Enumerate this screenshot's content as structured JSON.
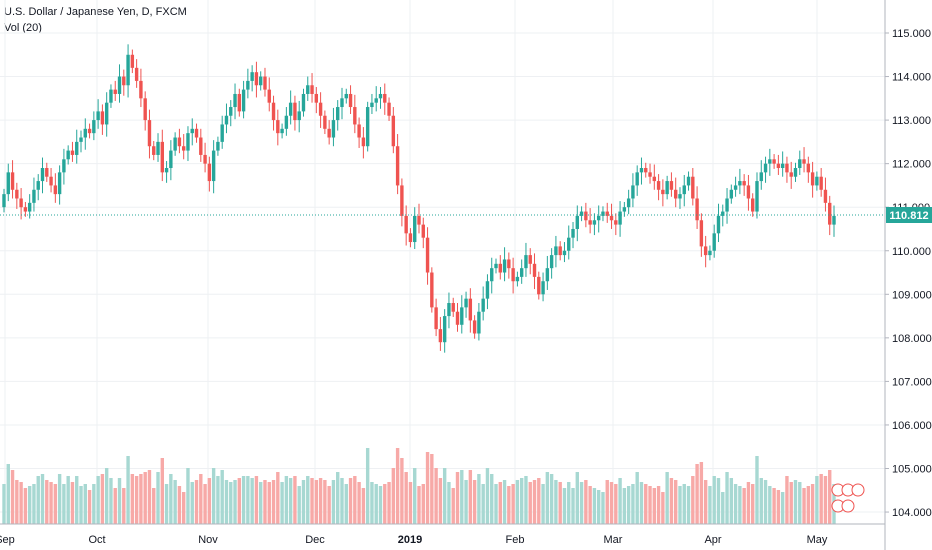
{
  "legend": {
    "title": "U.S. Dollar / Japanese Yen, D, FXCM",
    "volume": "Vol (20)"
  },
  "colors": {
    "up": "#26a69a",
    "down": "#ef5350",
    "up_volume": "#a7d8d2",
    "down_volume": "#f7a9a7",
    "grid": "#eef0f3",
    "axis_line": "#b2b5be",
    "price_tag": "#26a69a"
  },
  "last_price_label": "110.812",
  "chart_data": {
    "type": "candlestick",
    "title": "U.S. Dollar / Japanese Yen, D, FXCM",
    "y_axis": {
      "range": [
        103.6,
        115.7
      ],
      "ticks": [
        "115.000",
        "114.000",
        "113.000",
        "112.000",
        "111.000",
        "110.000",
        "109.000",
        "108.000",
        "107.000",
        "106.000",
        "105.000",
        "104.000"
      ]
    },
    "x_axis": {
      "ticks": [
        "Sep",
        "Oct",
        "Nov",
        "Dec",
        "2019",
        "Feb",
        "Mar",
        "Apr",
        "May"
      ],
      "bold_ticks": [
        "2019"
      ]
    },
    "last_price": 110.812,
    "grid": true,
    "candles_close": [
      111.3,
      111.8,
      111.4,
      111.2,
      111.0,
      110.9,
      111.1,
      111.4,
      111.6,
      111.9,
      111.7,
      111.5,
      111.3,
      111.8,
      112.1,
      112.3,
      112.2,
      112.5,
      112.6,
      112.8,
      112.7,
      113.0,
      113.2,
      112.9,
      113.4,
      113.7,
      113.6,
      114.0,
      113.8,
      114.5,
      114.2,
      113.9,
      113.5,
      113.0,
      112.4,
      112.2,
      112.5,
      111.8,
      111.9,
      112.3,
      112.6,
      112.4,
      112.3,
      112.7,
      112.8,
      112.6,
      112.2,
      112.0,
      111.6,
      112.3,
      112.5,
      112.9,
      113.1,
      113.3,
      113.6,
      113.2,
      113.7,
      113.9,
      114.1,
      113.8,
      114.0,
      113.7,
      113.4,
      113.0,
      112.7,
      112.8,
      113.1,
      113.4,
      113.0,
      113.2,
      113.6,
      113.8,
      113.6,
      113.4,
      113.1,
      112.8,
      112.6,
      113.0,
      113.3,
      113.5,
      113.6,
      113.3,
      112.9,
      112.6,
      112.4,
      113.3,
      113.4,
      113.5,
      113.6,
      113.4,
      113.1,
      112.4,
      111.5,
      110.8,
      110.4,
      110.2,
      110.8,
      110.6,
      110.3,
      109.5,
      108.7,
      108.2,
      107.9,
      108.5,
      108.8,
      108.6,
      108.3,
      108.7,
      108.9,
      108.4,
      108.1,
      108.6,
      108.9,
      109.3,
      109.6,
      109.7,
      109.5,
      109.8,
      109.6,
      109.3,
      109.4,
      109.6,
      109.9,
      109.7,
      109.4,
      109.0,
      109.3,
      109.6,
      109.9,
      110.1,
      109.9,
      110.0,
      110.3,
      110.5,
      110.8,
      110.9,
      110.7,
      110.6,
      110.7,
      110.8,
      110.9,
      110.8,
      110.7,
      110.6,
      110.9,
      111.0,
      111.2,
      111.5,
      111.8,
      111.9,
      111.8,
      111.7,
      111.6,
      111.4,
      111.3,
      111.6,
      111.4,
      111.2,
      111.3,
      111.5,
      111.7,
      111.2,
      110.7,
      110.1,
      109.9,
      110.0,
      110.4,
      110.8,
      110.9,
      111.2,
      111.4,
      111.5,
      111.6,
      111.5,
      111.2,
      110.9,
      111.6,
      111.8,
      112.0,
      112.1,
      112.0,
      111.9,
      112.0,
      111.8,
      111.7,
      111.9,
      112.1,
      112.0,
      111.8,
      111.5,
      111.7,
      111.4,
      111.1,
      110.6,
      110.8
    ]
  }
}
